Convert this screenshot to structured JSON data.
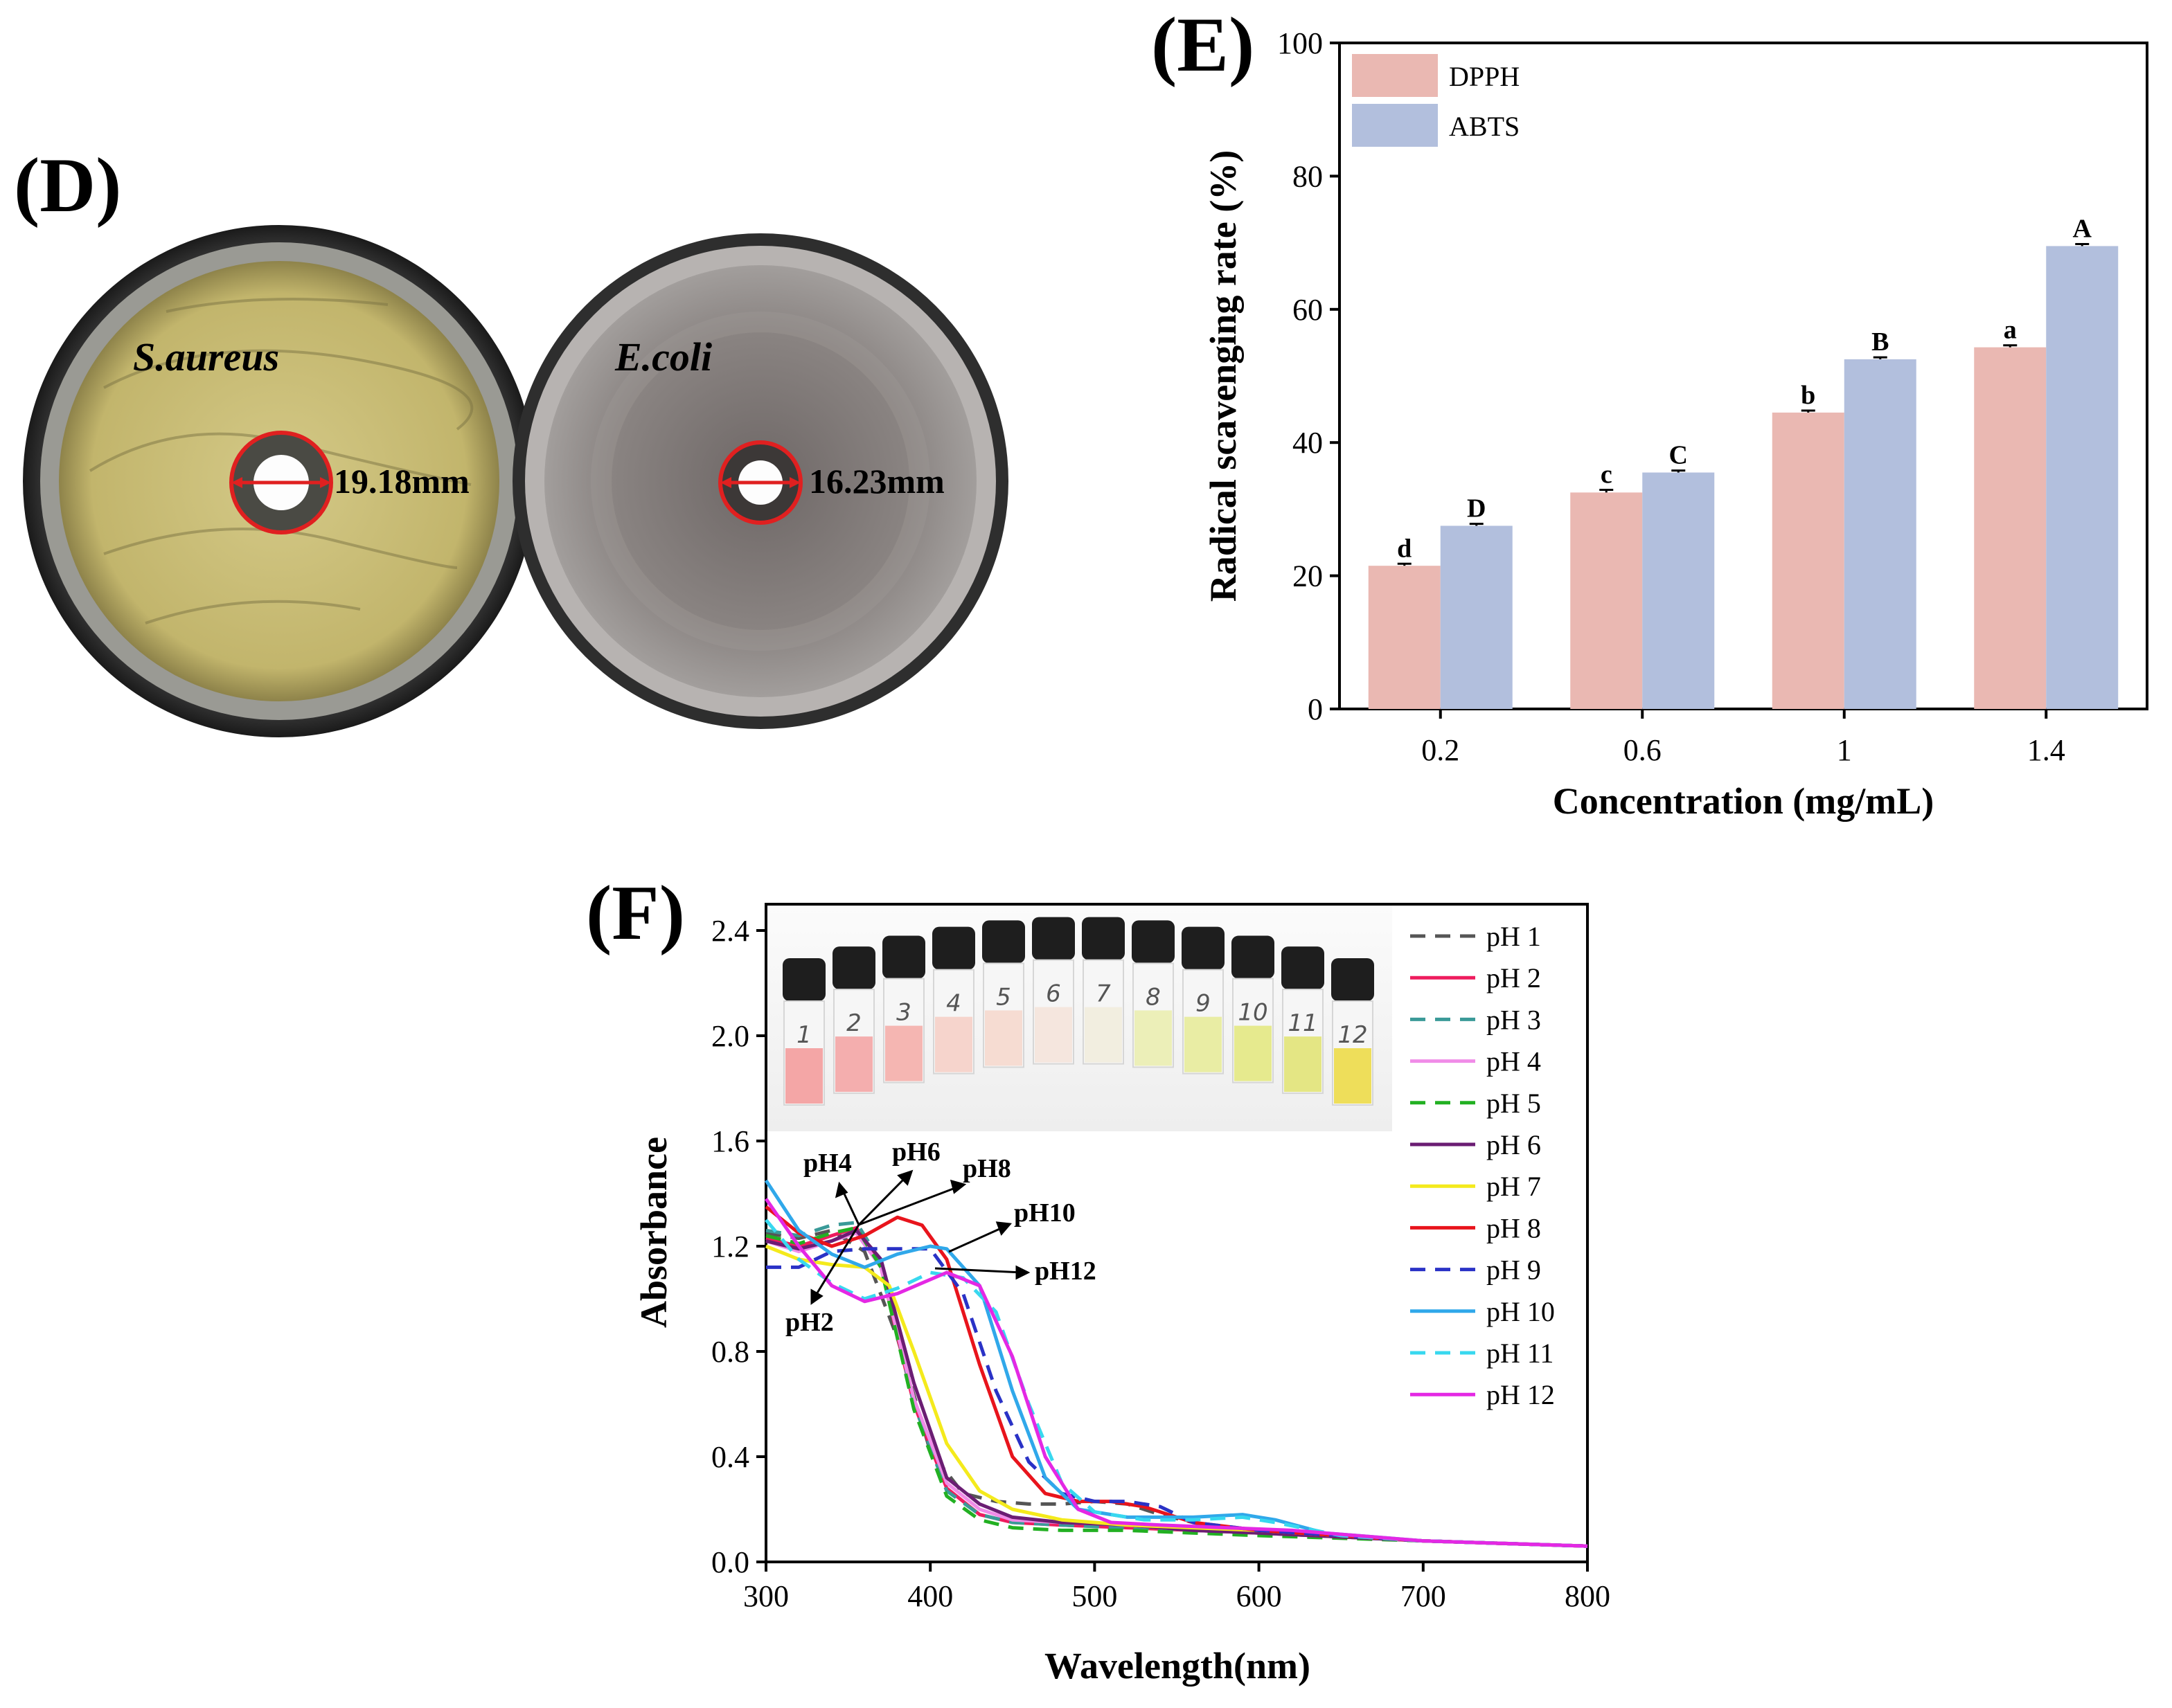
{
  "panels": {
    "D": {
      "label": "(D)",
      "dishes": [
        {
          "organism": "S.aureus",
          "zone": "19.18mm",
          "agar_color": "#c9bd78"
        },
        {
          "organism": "E.coli",
          "zone": "16.23mm",
          "agar_color": "#807a78"
        }
      ]
    },
    "E": {
      "label": "(E)"
    },
    "F": {
      "label": "(F)"
    }
  },
  "colors": {
    "dpph": "#eab8b2",
    "abts": "#b2bfdd",
    "zone_ring": "#e02020"
  },
  "chart_data": [
    {
      "id": "E",
      "type": "bar",
      "title": "",
      "xlabel": "Concentration (mg/mL)",
      "ylabel": "Radical scavenging rate (%)",
      "categories": [
        "0.2",
        "0.6",
        "1",
        "1.4"
      ],
      "ylim": [
        0,
        100
      ],
      "yticks": [
        0,
        20,
        40,
        60,
        80,
        100
      ],
      "legend_position": "top-left",
      "series": [
        {
          "name": "DPPH",
          "values": [
            21.5,
            32.5,
            44.5,
            54.3
          ],
          "errors": [
            0.3,
            0.4,
            0.3,
            0.3
          ],
          "letters": [
            "d",
            "c",
            "b",
            "a"
          ]
        },
        {
          "name": "ABTS",
          "values": [
            27.5,
            35.5,
            52.5,
            69.5
          ],
          "errors": [
            0.3,
            0.3,
            0.3,
            0.3
          ],
          "letters": [
            "D",
            "C",
            "B",
            "A"
          ]
        }
      ]
    },
    {
      "id": "F",
      "type": "line",
      "title": "",
      "xlabel": "Wavelength(nm)",
      "ylabel": "Absorbance",
      "xlim": [
        300,
        800
      ],
      "ylim": [
        0,
        2.5
      ],
      "xticks": [
        300,
        400,
        500,
        600,
        700,
        800
      ],
      "yticks": [
        "0.0",
        "0.4",
        "0.8",
        "1.2",
        "1.6",
        "2.0",
        "2.4"
      ],
      "legend_position": "right",
      "inset": {
        "vial_labels": [
          "1",
          "2",
          "3",
          "4",
          "5",
          "6",
          "7",
          "8",
          "9",
          "10",
          "11",
          "12"
        ]
      },
      "annotations": [
        "pH4",
        "pH6",
        "pH8",
        "pH10",
        "pH12",
        "pH2"
      ],
      "series": [
        {
          "name": "pH 1",
          "color": "#555555",
          "dash": true,
          "x": [
            300,
            320,
            340,
            360,
            380,
            400,
            420,
            440,
            460,
            480,
            500,
            520,
            540,
            560,
            580,
            600,
            650,
            700,
            800
          ],
          "y": [
            1.25,
            1.23,
            1.26,
            1.18,
            0.85,
            0.42,
            0.26,
            0.23,
            0.22,
            0.22,
            0.23,
            0.22,
            0.18,
            0.15,
            0.12,
            0.12,
            0.1,
            0.08,
            0.06
          ]
        },
        {
          "name": "pH 2",
          "color": "#ee1c5e",
          "dash": false,
          "x": [
            300,
            320,
            340,
            355,
            370,
            390,
            410,
            430,
            450,
            480,
            520,
            560,
            600,
            700,
            800
          ],
          "y": [
            1.23,
            1.2,
            1.24,
            1.27,
            1.12,
            0.6,
            0.28,
            0.18,
            0.15,
            0.14,
            0.13,
            0.12,
            0.11,
            0.08,
            0.06
          ]
        },
        {
          "name": "pH 3",
          "color": "#3a9a98",
          "dash": true,
          "x": [
            300,
            320,
            340,
            355,
            370,
            390,
            410,
            430,
            450,
            480,
            520,
            560,
            600,
            700,
            800
          ],
          "y": [
            1.26,
            1.24,
            1.28,
            1.29,
            1.14,
            0.6,
            0.27,
            0.18,
            0.15,
            0.14,
            0.13,
            0.12,
            0.11,
            0.08,
            0.06
          ]
        },
        {
          "name": "pH 4",
          "color": "#f08ce8",
          "dash": false,
          "x": [
            300,
            320,
            340,
            355,
            370,
            390,
            410,
            430,
            450,
            480,
            520,
            560,
            600,
            700,
            800
          ],
          "y": [
            1.22,
            1.18,
            1.22,
            1.25,
            1.12,
            0.62,
            0.3,
            0.2,
            0.16,
            0.15,
            0.14,
            0.12,
            0.11,
            0.08,
            0.06
          ]
        },
        {
          "name": "pH 5",
          "color": "#22b022",
          "dash": true,
          "x": [
            300,
            320,
            340,
            355,
            370,
            390,
            410,
            430,
            450,
            480,
            520,
            560,
            600,
            700,
            800
          ],
          "y": [
            1.24,
            1.21,
            1.25,
            1.27,
            1.12,
            0.58,
            0.25,
            0.16,
            0.13,
            0.12,
            0.12,
            0.11,
            0.1,
            0.08,
            0.06
          ]
        },
        {
          "name": "pH 6",
          "color": "#6b1d73",
          "dash": false,
          "x": [
            300,
            320,
            340,
            355,
            370,
            390,
            410,
            430,
            450,
            480,
            520,
            560,
            600,
            700,
            800
          ],
          "y": [
            1.22,
            1.19,
            1.22,
            1.26,
            1.15,
            0.68,
            0.32,
            0.22,
            0.17,
            0.15,
            0.14,
            0.12,
            0.11,
            0.08,
            0.06
          ]
        },
        {
          "name": "pH 7",
          "color": "#f4ea1c",
          "dash": false,
          "x": [
            300,
            320,
            340,
            360,
            375,
            390,
            410,
            430,
            450,
            480,
            520,
            560,
            600,
            700,
            800
          ],
          "y": [
            1.2,
            1.15,
            1.13,
            1.12,
            1.05,
            0.8,
            0.45,
            0.27,
            0.2,
            0.16,
            0.14,
            0.13,
            0.12,
            0.08,
            0.06
          ]
        },
        {
          "name": "pH 8",
          "color": "#e8141c",
          "dash": false,
          "x": [
            300,
            320,
            340,
            360,
            380,
            395,
            410,
            430,
            450,
            470,
            490,
            510,
            530,
            560,
            600,
            700,
            800
          ],
          "y": [
            1.35,
            1.25,
            1.2,
            1.24,
            1.31,
            1.28,
            1.15,
            0.75,
            0.4,
            0.26,
            0.23,
            0.23,
            0.21,
            0.15,
            0.12,
            0.08,
            0.06
          ]
        },
        {
          "name": "pH 9",
          "color": "#2a32c6",
          "dash": true,
          "x": [
            300,
            320,
            340,
            360,
            380,
            400,
            420,
            440,
            460,
            480,
            500,
            520,
            540,
            560,
            600,
            700,
            800
          ],
          "y": [
            1.12,
            1.12,
            1.18,
            1.19,
            1.19,
            1.19,
            1.02,
            0.65,
            0.38,
            0.26,
            0.23,
            0.23,
            0.21,
            0.15,
            0.12,
            0.08,
            0.06
          ]
        },
        {
          "name": "pH 10",
          "color": "#30a8ea",
          "dash": false,
          "x": [
            300,
            320,
            340,
            360,
            380,
            400,
            410,
            430,
            450,
            470,
            490,
            520,
            560,
            590,
            610,
            640,
            680,
            700,
            800
          ],
          "y": [
            1.45,
            1.26,
            1.17,
            1.12,
            1.17,
            1.2,
            1.19,
            1.05,
            0.65,
            0.32,
            0.2,
            0.17,
            0.17,
            0.18,
            0.16,
            0.11,
            0.09,
            0.08,
            0.06
          ]
        },
        {
          "name": "pH 11",
          "color": "#38d8ef",
          "dash": true,
          "x": [
            300,
            320,
            340,
            360,
            380,
            400,
            420,
            440,
            460,
            480,
            500,
            530,
            560,
            590,
            610,
            650,
            700,
            800
          ],
          "y": [
            1.3,
            1.15,
            1.06,
            1.0,
            1.04,
            1.1,
            1.08,
            0.95,
            0.6,
            0.3,
            0.19,
            0.16,
            0.16,
            0.17,
            0.15,
            0.1,
            0.08,
            0.06
          ]
        },
        {
          "name": "pH 12",
          "color": "#e428e4",
          "dash": false,
          "x": [
            300,
            320,
            340,
            360,
            380,
            395,
            410,
            430,
            450,
            470,
            490,
            510,
            540,
            580,
            620,
            700,
            800
          ],
          "y": [
            1.38,
            1.2,
            1.05,
            0.99,
            1.02,
            1.06,
            1.1,
            1.05,
            0.78,
            0.4,
            0.2,
            0.15,
            0.14,
            0.13,
            0.12,
            0.08,
            0.06
          ]
        }
      ]
    }
  ]
}
